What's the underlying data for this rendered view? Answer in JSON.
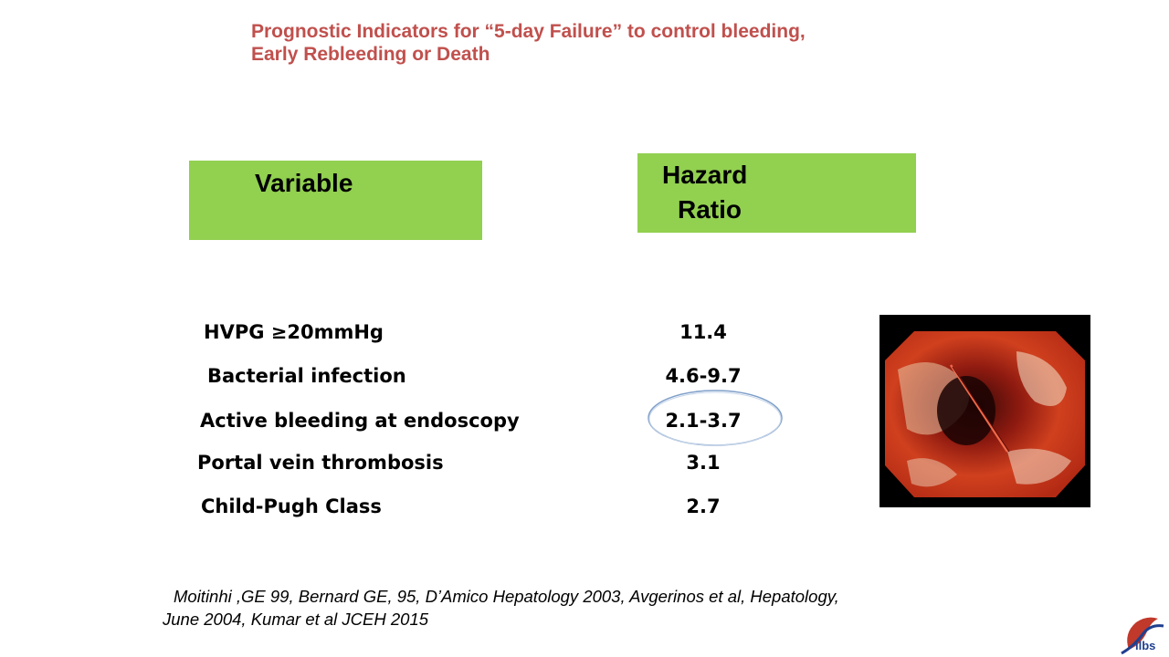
{
  "slide": {
    "title_line1": "Prognostic Indicators for “5-day Failure” to control bleeding,",
    "title_line2": "Early Rebleeding or Death",
    "header_variable": "Variable",
    "header_hazard_line1": "Hazard",
    "header_hazard_line2": "Ratio",
    "header_color": "#92d050",
    "title_color": "#c0504d",
    "rows": [
      {
        "variable": "HVPG ≥20mmHg",
        "hazard_ratio": "11.4"
      },
      {
        "variable": "Bacterial infection",
        "hazard_ratio": "4.6-9.7"
      },
      {
        "variable": "Active bleeding at endoscopy",
        "hazard_ratio": "2.1-3.7"
      },
      {
        "variable": "Portal vein thrombosis",
        "hazard_ratio": "3.1"
      },
      {
        "variable": "Child-Pugh Class",
        "hazard_ratio": "2.7"
      }
    ],
    "citation_line1": "Moitinhi ,GE 99, Bernard GE, 95, D’Amico Hepatology 2003, Avgerinos et al,  Hepatology,",
    "citation_line2": "June 2004, Kumar et al JCEH 2015",
    "image_icon": "endoscopy-photo",
    "logo_icon": "ilbs-logo",
    "logo_text": "ilbs"
  }
}
